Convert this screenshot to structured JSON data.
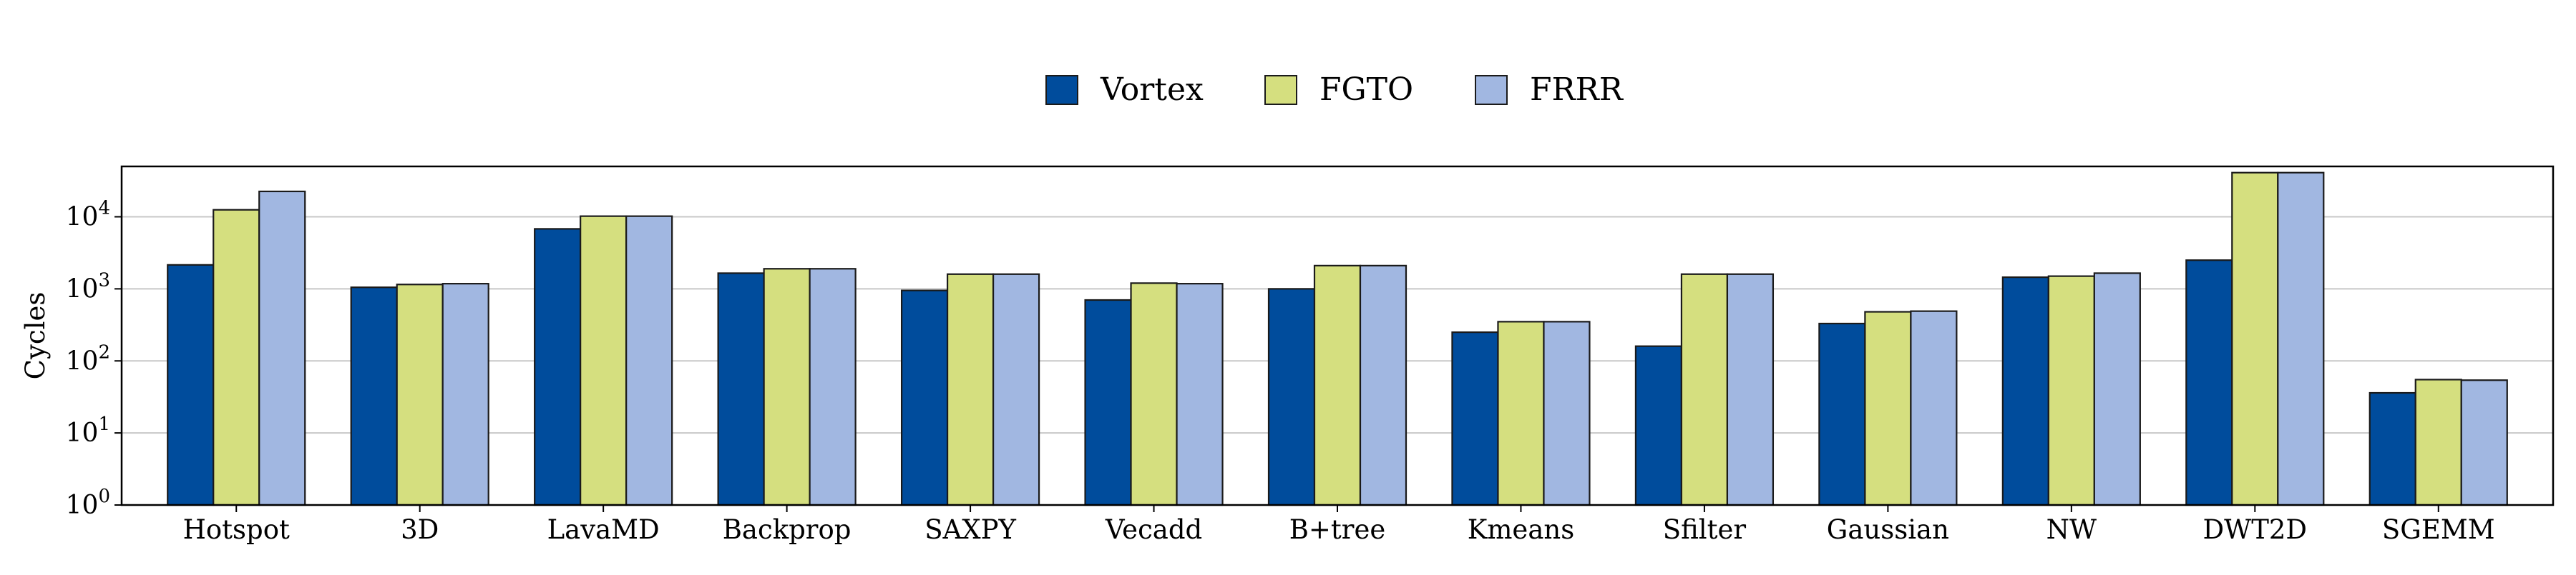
{
  "chart_data": {
    "type": "bar",
    "yscale": "log",
    "ylim": [
      1,
      50000
    ],
    "ylabel": "Cycles",
    "xlabel": "",
    "title": "",
    "grid": "horizontal",
    "legend_placement": "top-center",
    "yticks": [
      {
        "value": 1,
        "base": "10",
        "exp": "0"
      },
      {
        "value": 10,
        "base": "10",
        "exp": "1"
      },
      {
        "value": 100,
        "base": "10",
        "exp": "2"
      },
      {
        "value": 1000,
        "base": "10",
        "exp": "3"
      },
      {
        "value": 10000,
        "base": "10",
        "exp": "4"
      }
    ],
    "categories": [
      "Hotspot",
      "3D",
      "LavaMD",
      "Backprop",
      "SAXPY",
      "Vecadd",
      "B+tree",
      "Kmeans",
      "Sfilter",
      "Gaussian",
      "NW",
      "DWT2D",
      "SGEMM"
    ],
    "series": [
      {
        "name": "Vortex",
        "color": "#004c9c",
        "values": [
          2150,
          1050,
          6800,
          1650,
          950,
          700,
          1000,
          250,
          160,
          330,
          1450,
          2500,
          36
        ]
      },
      {
        "name": "FGTO",
        "color": "#d5df7f",
        "values": [
          12500,
          1150,
          10200,
          1900,
          1600,
          1200,
          2100,
          350,
          1600,
          480,
          1500,
          41000,
          55
        ]
      },
      {
        "name": "FRRR",
        "color": "#a1b7e1",
        "values": [
          22500,
          1180,
          10200,
          1900,
          1600,
          1180,
          2100,
          350,
          1600,
          490,
          1650,
          41000,
          54
        ]
      }
    ]
  }
}
